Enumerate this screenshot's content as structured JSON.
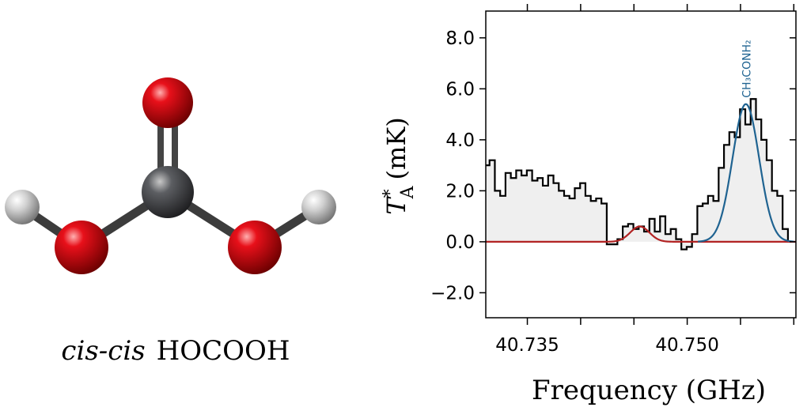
{
  "molecule": {
    "caption_prefix": "cis-cis",
    "caption_name": "HOCOOH"
  },
  "chart_data": {
    "type": "step",
    "xlabel": "Frequency (GHz)",
    "ylabel": {
      "symbol": "T",
      "sup": "*",
      "sub": "A",
      "unit": "(mK)"
    },
    "xlim": [
      40.7311,
      40.7602
    ],
    "ylim": [
      -2.98,
      9.05
    ],
    "xticks": [
      40.735,
      {
        "value": 40.75,
        "label": "40.750"
      }
    ],
    "xminorticks": [
      40.74,
      40.745,
      40.755,
      40.76
    ],
    "yticks": [
      {
        "value": -2,
        "label": "−2.0"
      },
      {
        "value": 0,
        "label": "0.0"
      },
      {
        "value": 2,
        "label": "2.0"
      },
      {
        "value": 4,
        "label": "4.0"
      },
      {
        "value": 6,
        "label": "6.0"
      },
      {
        "value": 8,
        "label": "8.0"
      }
    ],
    "x": [
      40.7312,
      40.7317,
      40.7322,
      40.7327,
      40.7332,
      40.7337,
      40.7342,
      40.7347,
      40.7352,
      40.7357,
      40.7362,
      40.7367,
      40.7372,
      40.7377,
      40.7382,
      40.7387,
      40.7392,
      40.7397,
      40.7402,
      40.7407,
      40.7412,
      40.7417,
      40.7422,
      40.7427,
      40.7432,
      40.7437,
      40.7442,
      40.7447,
      40.7452,
      40.7457,
      40.7462,
      40.7467,
      40.7472,
      40.7477,
      40.7482,
      40.7487,
      40.7492,
      40.7497,
      40.7502,
      40.7507,
      40.7512,
      40.7517,
      40.7522,
      40.7527,
      40.7532,
      40.7537,
      40.7542,
      40.7547,
      40.7552,
      40.7557,
      40.7562,
      40.7567,
      40.7572,
      40.7577,
      40.7582,
      40.7587,
      40.7592,
      40.7597
    ],
    "series": [
      {
        "name": "spectrum",
        "color": "#000000",
        "fill": "#efefef",
        "values": [
          3.0,
          3.2,
          2.0,
          1.8,
          2.7,
          2.5,
          2.8,
          2.6,
          2.8,
          2.4,
          2.5,
          2.2,
          2.6,
          2.3,
          2.0,
          1.8,
          1.7,
          2.1,
          2.3,
          1.8,
          1.6,
          1.7,
          1.5,
          -0.1,
          -0.1,
          0.1,
          0.6,
          0.7,
          0.5,
          0.6,
          0.4,
          0.9,
          0.4,
          1.0,
          0.3,
          0.5,
          0.1,
          -0.3,
          -0.2,
          0.3,
          1.4,
          1.5,
          1.8,
          1.6,
          2.9,
          3.8,
          4.3,
          4.1,
          5.2,
          4.6,
          5.6,
          4.8,
          4.0,
          3.2,
          2.0,
          1.8,
          0.5,
          0.0
        ]
      }
    ],
    "fits": [
      {
        "color": "#b22222",
        "center": 40.74555,
        "amplitude": 0.6,
        "sigma": 0.0009
      },
      {
        "color": "#1f6391",
        "center": 40.7555,
        "amplitude": 5.4,
        "sigma": 0.00125,
        "label": "CH₃CONH₂"
      }
    ]
  }
}
